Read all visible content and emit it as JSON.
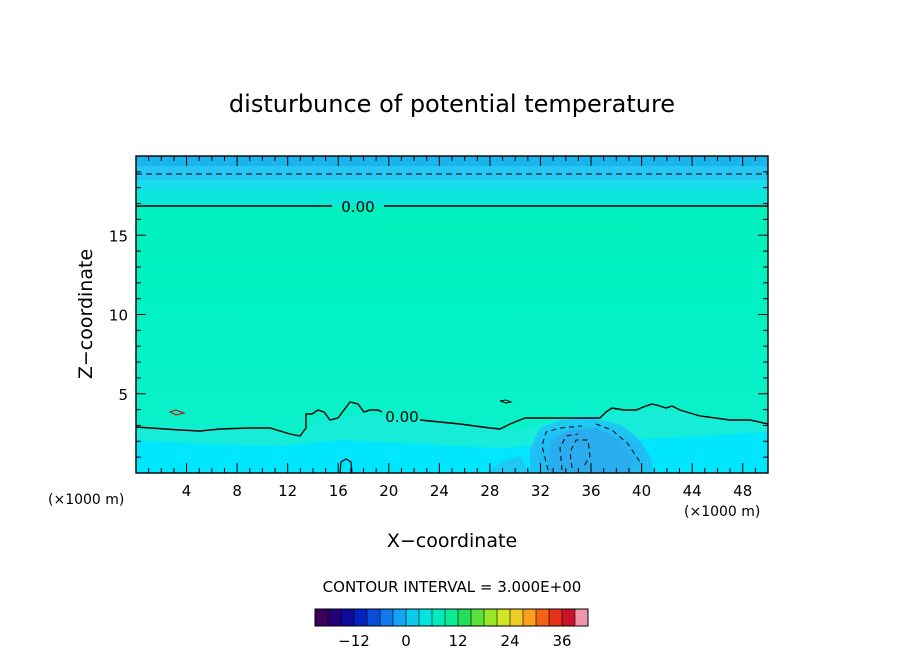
{
  "chart_data": {
    "type": "heatmap",
    "title": "disturbunce of potential temperature",
    "xlabel": "X−coordinate",
    "ylabel": "Z−coordinate",
    "x_unit_left": "(×1000 m)",
    "x_unit_right": "(×1000 m)",
    "xlim": [
      0,
      50
    ],
    "ylim": [
      0,
      20
    ],
    "x_ticks": [
      4,
      8,
      12,
      16,
      20,
      24,
      28,
      32,
      36,
      40,
      44,
      48
    ],
    "y_ticks": [
      5,
      10,
      15
    ],
    "contour_labels": [
      {
        "text": "0.00",
        "x": 17.6,
        "z": 16.9
      },
      {
        "text": "0.00",
        "x": 21.0,
        "z": 3.6
      }
    ],
    "contour_interval": "CONTOUR INTERVAL = 3.000E+00",
    "colorbar": {
      "min": -21,
      "max": 42,
      "step": 3,
      "ticks": [
        "−12",
        "0",
        "12",
        "24",
        "36"
      ],
      "tick_values": [
        -12,
        0,
        12,
        24,
        36
      ]
    },
    "colors": {
      "upper_band": "#1ab4ec",
      "upper_band2": "#26c6f5",
      "upper_band3": "#18dcec",
      "main_field": "#00f0c0",
      "mid_field": "#06f2b6",
      "lower_field": "#16ecd8",
      "surface_field": "#00e6ff",
      "cold_pool": "#22b4f0",
      "cold_pool_inner": "#30a8ee"
    }
  }
}
